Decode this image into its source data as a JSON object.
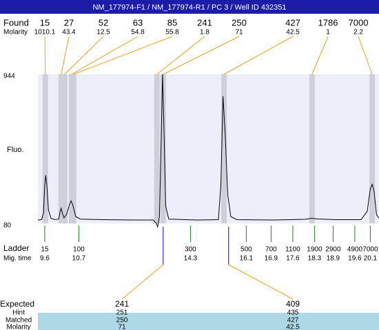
{
  "header": {
    "title": "NM_177974-F1 / NM_177974-R1 / PC 3 / Well ID 432351"
  },
  "chart_data": {
    "type": "electropherogram",
    "y_label": "Fluo.",
    "ylim": [
      80,
      944
    ],
    "yticks": [
      944,
      80
    ],
    "xlim": [
      9.38,
      20.38
    ],
    "trace": {
      "color": "#000000",
      "x": [
        9.38,
        9.5,
        9.56,
        9.6,
        9.63,
        9.67,
        9.72,
        9.8,
        9.9,
        10.05,
        10.1,
        10.13,
        10.17,
        10.22,
        10.3,
        10.4,
        10.45,
        10.5,
        10.6,
        10.75,
        11.5,
        12.5,
        13.1,
        13.2,
        13.24,
        13.3,
        13.36,
        13.4,
        13.45,
        13.5,
        13.6,
        14.5,
        15.2,
        15.28,
        15.35,
        15.42,
        15.5,
        15.6,
        15.8,
        17,
        18.0,
        18.2,
        18.4,
        19,
        19.8,
        20.0,
        20.1,
        20.16,
        20.22,
        20.3,
        20.38
      ],
      "values": [
        100,
        102,
        140,
        300,
        359,
        300,
        160,
        110,
        103,
        105,
        150,
        168,
        140,
        112,
        130,
        190,
        211,
        190,
        120,
        105,
        102,
        100,
        100,
        80,
        60,
        120,
        600,
        944,
        600,
        180,
        105,
        100,
        102,
        300,
        817,
        600,
        250,
        120,
        102,
        100,
        104,
        110,
        106,
        102,
        102,
        150,
        280,
        307,
        270,
        130,
        110
      ]
    },
    "found": {
      "label": "Found",
      "molarity_label": "Molarity",
      "sizes": [
        15,
        27,
        52,
        63,
        85,
        241,
        250,
        427,
        1786,
        7000
      ],
      "molarity": [
        1010.1,
        43.4,
        12.5,
        54.8,
        55.8,
        1.8,
        71,
        42.5,
        1,
        2.2
      ],
      "x": [
        9.62,
        10.13,
        10.24,
        10.47,
        10.53,
        13.22,
        13.42,
        15.38,
        18.22,
        20.16
      ]
    },
    "ladder": {
      "label": "Ladder",
      "time_label": "Mig. time",
      "sizes": [
        15,
        100,
        300,
        500,
        700,
        1100,
        1900,
        2900,
        4900,
        7000
      ],
      "times": [
        9.6,
        10.7,
        14.3,
        16.1,
        16.9,
        17.6,
        18.3,
        18.9,
        19.6,
        20.1
      ]
    },
    "expected": {
      "label": "Expected",
      "hint_label": "Hint",
      "matched_label": "Matched",
      "molarity_label": "Molarity",
      "sizes": [
        241,
        409
      ],
      "hint": [
        251,
        435
      ],
      "matched": [
        250,
        427
      ],
      "molarity": [
        71,
        42.5
      ],
      "x": [
        13.42,
        15.53
      ]
    }
  }
}
